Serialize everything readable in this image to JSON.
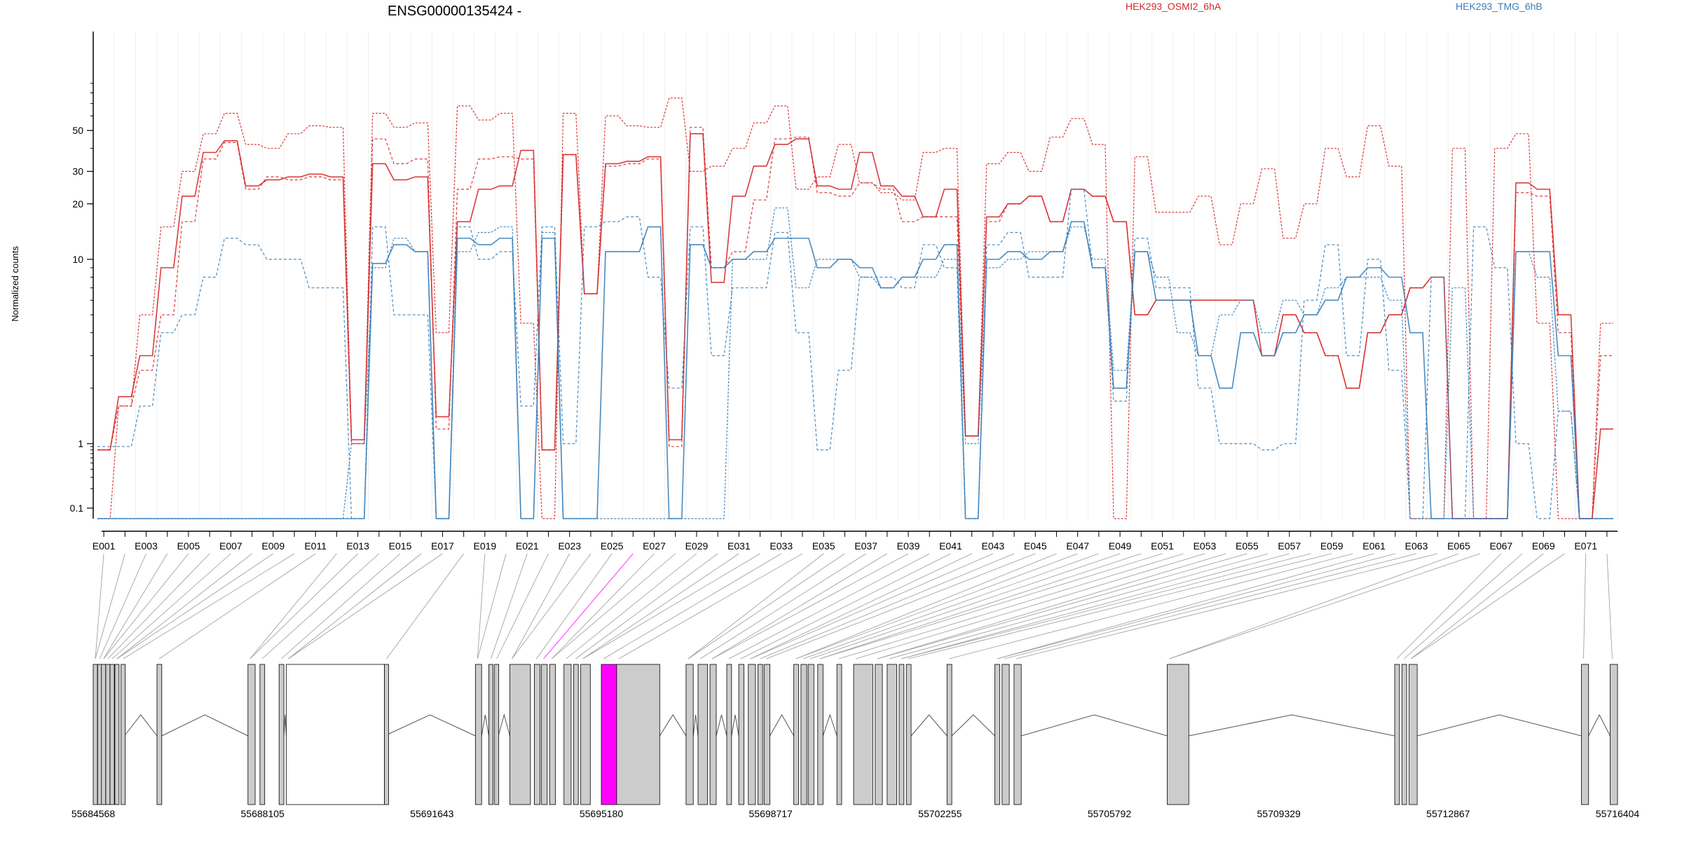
{
  "chart_data": {
    "type": "line",
    "title": "ENSG00000135424 -",
    "ylabel": "Normalized counts",
    "y_scale": "log",
    "y_ticks": [
      0.1,
      1,
      10,
      20,
      30,
      50
    ],
    "colors": {
      "sampleA": "#d62728",
      "sampleB": "#377eb8",
      "highlight_exon": "#ff00ff",
      "exon_fill": "#cccccc"
    },
    "legend": [
      {
        "name": "HEK293_OSMI2_6hA",
        "color": "#d62728"
      },
      {
        "name": "HEK293_TMG_6hB",
        "color": "#377eb8"
      }
    ],
    "exon_tick_labels": [
      "E001",
      "E003",
      "E005",
      "E007",
      "E009",
      "E011",
      "E013",
      "E015",
      "E017",
      "E019",
      "E021",
      "E023",
      "E025",
      "E027",
      "E029",
      "E031",
      "E033",
      "E035",
      "E037",
      "E039",
      "E041",
      "E043",
      "E045",
      "E047",
      "E049",
      "E051",
      "E053",
      "E055",
      "E057",
      "E059",
      "E061",
      "E063",
      "E065",
      "E067",
      "E069",
      "E071"
    ],
    "n_exon_bins": 72,
    "highlighted_exon": "E026",
    "genomic_axis": {
      "range": [
        55684568,
        55716404
      ],
      "tick_labels": [
        "55684568",
        "55688105",
        "55691643",
        "55695180",
        "55698717",
        "55702255",
        "55705792",
        "55709329",
        "55712867",
        "55716404"
      ]
    },
    "series": [
      {
        "name": "HEK293_OSMI2_6hA",
        "color": "#d62728",
        "style": "solid",
        "values": [
          0.8,
          1.8,
          3,
          9,
          22,
          38,
          44,
          25,
          27,
          28,
          29,
          28,
          1.05,
          33,
          27,
          28,
          1.4,
          16,
          24,
          25,
          39,
          0.8,
          37,
          6.5,
          33,
          34,
          36,
          1.05,
          48,
          7.5,
          22,
          32,
          42,
          45,
          25,
          24,
          38,
          25,
          22,
          17,
          24,
          1.1,
          17,
          20,
          22,
          16,
          24,
          22,
          16,
          5,
          6,
          6,
          6,
          6,
          6,
          3,
          5,
          4,
          3,
          2,
          4,
          5,
          7,
          8,
          0.07,
          0.07,
          0.07,
          26,
          24,
          5,
          0.07,
          1.2
        ]
      },
      {
        "name": "HEK293_OSMI2_6hA",
        "color": "#d62728",
        "style": "dashed",
        "values": [
          0.8,
          1.6,
          2.5,
          5,
          16,
          35,
          43,
          24,
          28,
          27,
          28,
          27,
          1,
          45,
          33,
          35,
          1.2,
          24,
          35,
          36,
          35,
          0.8,
          37,
          6.5,
          32,
          33,
          35,
          0.9,
          52,
          9,
          11,
          21,
          45,
          46,
          23,
          22,
          26,
          24,
          16,
          17,
          17,
          1.1,
          16,
          20,
          22,
          16,
          24,
          22,
          16,
          5,
          6,
          6,
          6,
          6,
          6,
          3,
          5,
          4,
          3,
          2,
          4,
          5,
          7,
          8,
          0.07,
          0.07,
          0.07,
          23,
          22,
          4,
          0.07,
          3
        ]
      },
      {
        "name": "HEK293_OSMI2_6hA",
        "color": "#d62728",
        "style": "dashed2",
        "values": [
          0.07,
          1.6,
          5,
          15,
          30,
          48,
          62,
          42,
          40,
          48,
          53,
          52,
          1,
          62,
          52,
          55,
          4,
          68,
          57,
          62,
          4.5,
          0.07,
          62,
          6.5,
          60,
          53,
          52,
          75,
          30,
          32,
          40,
          55,
          68,
          24,
          28,
          42,
          26,
          23,
          21,
          38,
          40,
          1.1,
          33,
          38,
          30,
          46,
          58,
          42,
          0.07,
          36,
          18,
          18,
          22,
          12,
          20,
          31,
          13,
          20,
          40,
          28,
          53,
          32,
          0.07,
          0.07,
          40,
          0.07,
          40,
          48,
          4.5,
          0.07,
          0.07,
          4.5
        ]
      },
      {
        "name": "HEK293_TMG_6hB",
        "color": "#377eb8",
        "style": "solid",
        "values": [
          0.07,
          0.07,
          0.07,
          0.07,
          0.07,
          0.07,
          0.07,
          0.07,
          0.07,
          0.07,
          0.07,
          0.07,
          0.07,
          9.5,
          12,
          11,
          0.07,
          13,
          12,
          13,
          0.07,
          13,
          0.07,
          0.07,
          11,
          11,
          15,
          0.07,
          12,
          9,
          10,
          11,
          13,
          13,
          9,
          10,
          9,
          7,
          8,
          10,
          12,
          0.07,
          10,
          11,
          10,
          11,
          16,
          9,
          2,
          11,
          6,
          6,
          3,
          2,
          4,
          3,
          4,
          5,
          6,
          8,
          9,
          8,
          4,
          0.07,
          0.07,
          0.07,
          0.07,
          11,
          11,
          3,
          0.07,
          0.07
        ]
      },
      {
        "name": "HEK293_TMG_6hB",
        "color": "#377eb8",
        "style": "dashed",
        "values": [
          0.9,
          0.9,
          1.6,
          4,
          5,
          8,
          13,
          12,
          10,
          10,
          7,
          7,
          0.07,
          15,
          5,
          5,
          0.07,
          15,
          10,
          11,
          1.6,
          15,
          1,
          15,
          16,
          17,
          8,
          2,
          15,
          3,
          7,
          7,
          14,
          4,
          0.8,
          2.5,
          8,
          8,
          7,
          12,
          9,
          0.07,
          12,
          14,
          8,
          8,
          24,
          9,
          1.7,
          13,
          7,
          7,
          2,
          1,
          1,
          0.8,
          1,
          6,
          12,
          3,
          10,
          2.5,
          0.07,
          8,
          0.07,
          15,
          9,
          1,
          0.07,
          1.5,
          0.07,
          0.07
        ]
      },
      {
        "name": "HEK293_TMG_6hB",
        "color": "#377eb8",
        "style": "dashed2",
        "values": [
          0.07,
          0.07,
          0.07,
          0.07,
          0.07,
          0.07,
          0.07,
          0.07,
          0.07,
          0.07,
          0.07,
          0.07,
          1,
          9,
          13,
          11,
          0.07,
          11,
          14,
          15,
          0.07,
          14,
          0.07,
          0.07,
          0.07,
          0.07,
          0.07,
          0.07,
          0.07,
          0.07,
          10,
          10,
          19,
          7,
          10,
          10,
          8,
          7,
          8,
          8,
          10,
          1,
          9,
          10,
          11,
          11,
          15,
          10,
          2.5,
          11,
          8,
          4,
          3,
          5,
          6,
          4,
          6,
          5,
          7,
          8,
          8,
          6,
          0.07,
          0.07,
          7,
          0.07,
          0.07,
          11,
          8,
          1.5,
          0.07,
          0.07
        ]
      }
    ]
  }
}
